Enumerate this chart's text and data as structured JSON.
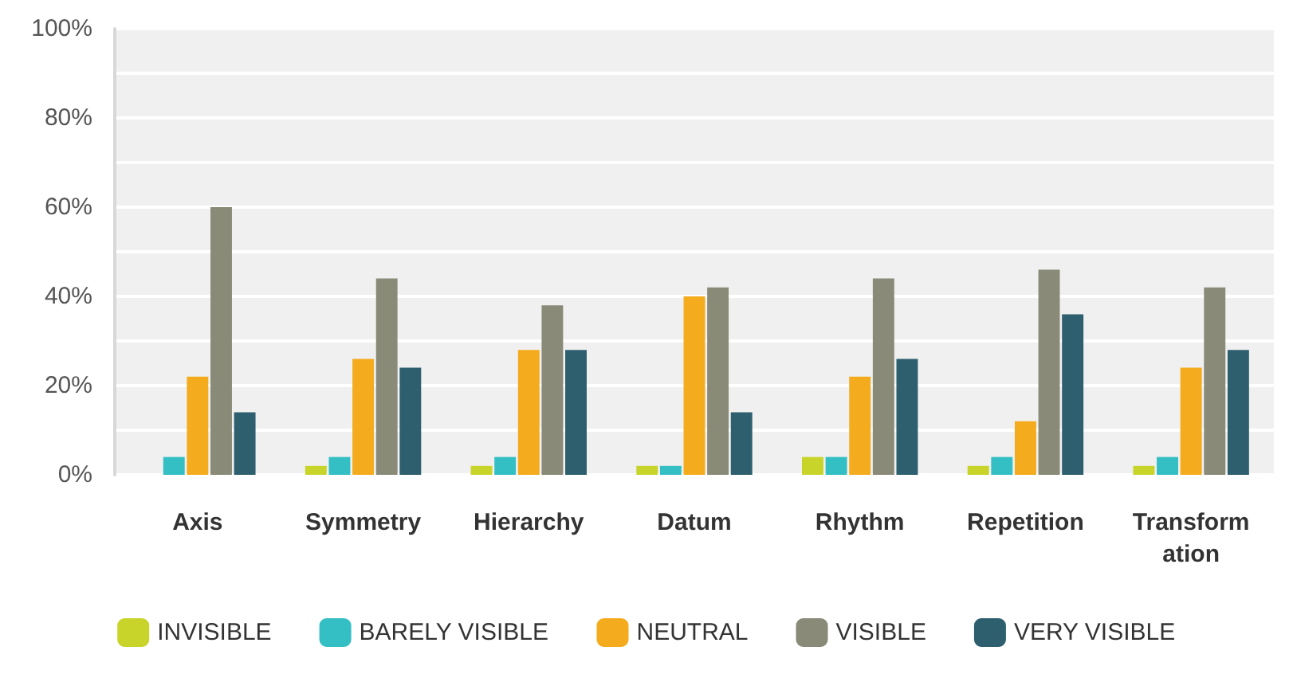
{
  "chart_data": {
    "type": "bar",
    "categories": [
      "Axis",
      "Symmetry",
      "Hierarchy",
      "Datum",
      "Rhythm",
      "Repetition",
      "Transformation"
    ],
    "series": [
      {
        "name": "INVISIBLE",
        "color": "#c8d42a",
        "values": [
          0,
          2,
          2,
          2,
          4,
          2,
          2
        ]
      },
      {
        "name": "BARELY VISIBLE",
        "color": "#33bfc4",
        "values": [
          4,
          4,
          4,
          2,
          4,
          4,
          4
        ]
      },
      {
        "name": "NEUTRAL",
        "color": "#f5ab1e",
        "values": [
          22,
          26,
          28,
          40,
          22,
          12,
          24
        ]
      },
      {
        "name": "VISIBLE",
        "color": "#8a8a78",
        "values": [
          60,
          44,
          38,
          42,
          44,
          46,
          42
        ]
      },
      {
        "name": "VERY VISIBLE",
        "color": "#2e5f6e",
        "values": [
          14,
          24,
          28,
          14,
          26,
          36,
          28
        ]
      }
    ],
    "ylim": [
      0,
      100
    ],
    "yticks": [
      {
        "value": 0,
        "label": "0%"
      },
      {
        "value": 10,
        "label": null
      },
      {
        "value": 20,
        "label": "20%"
      },
      {
        "value": 30,
        "label": null
      },
      {
        "value": 40,
        "label": "40%"
      },
      {
        "value": 50,
        "label": null
      },
      {
        "value": 60,
        "label": "60%"
      },
      {
        "value": 70,
        "label": null
      },
      {
        "value": 80,
        "label": "80%"
      },
      {
        "value": 90,
        "label": null
      },
      {
        "value": 100,
        "label": "100%"
      }
    ],
    "grid": "y",
    "legend": "bottom"
  }
}
